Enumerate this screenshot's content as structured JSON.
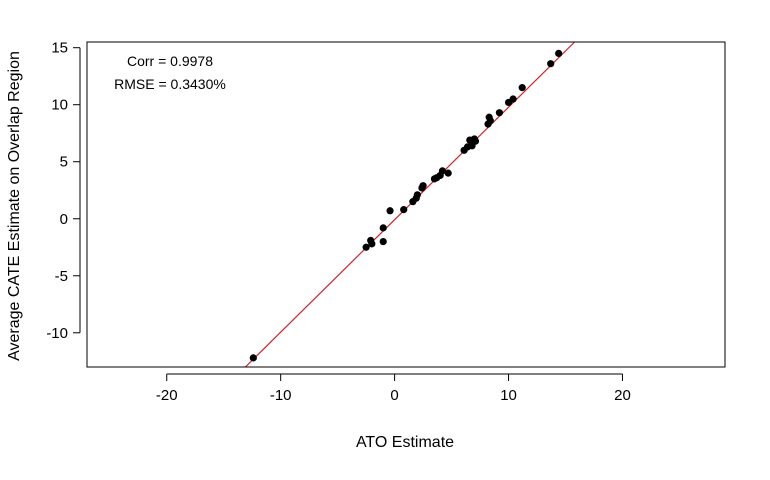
{
  "chart_data": {
    "type": "scatter",
    "title": "",
    "xlabel": "ATO Estimate",
    "ylabel": "Average CATE Estimate on Overlap Region",
    "xlim": [
      -27,
      29
    ],
    "ylim": [
      -13,
      15.5
    ],
    "x_ticks": [
      -20,
      -10,
      0,
      10,
      20
    ],
    "y_ticks": [
      -10,
      -5,
      0,
      5,
      10,
      15
    ],
    "grid": false,
    "annotations": [
      "Corr = 0.9978",
      "RMSE = 0.3430%"
    ],
    "reference_line": {
      "label": "",
      "points": [
        [
          -13.1,
          -13
        ],
        [
          15.8,
          15.5
        ]
      ],
      "color": "#d0262c"
    },
    "point_color": "#000000",
    "points": [
      [
        -12.4,
        -12.2
      ],
      [
        -2.5,
        -2.5
      ],
      [
        -2.1,
        -1.9
      ],
      [
        -2.0,
        -2.2
      ],
      [
        -1.0,
        -0.8
      ],
      [
        -1.0,
        -2.0
      ],
      [
        -0.4,
        0.7
      ],
      [
        0.8,
        0.8
      ],
      [
        1.6,
        1.5
      ],
      [
        1.9,
        1.8
      ],
      [
        2.0,
        2.1
      ],
      [
        2.4,
        2.7
      ],
      [
        2.5,
        2.9
      ],
      [
        3.5,
        3.5
      ],
      [
        3.7,
        3.6
      ],
      [
        4.0,
        3.8
      ],
      [
        4.2,
        4.2
      ],
      [
        4.7,
        4.0
      ],
      [
        6.1,
        6.0
      ],
      [
        6.4,
        6.3
      ],
      [
        6.6,
        6.9
      ],
      [
        6.8,
        6.4
      ],
      [
        7.0,
        7.0
      ],
      [
        7.1,
        6.8
      ],
      [
        8.2,
        8.3
      ],
      [
        8.3,
        8.9
      ],
      [
        8.4,
        8.6
      ],
      [
        9.2,
        9.3
      ],
      [
        10.0,
        10.2
      ],
      [
        10.4,
        10.5
      ],
      [
        11.2,
        11.5
      ],
      [
        13.7,
        13.6
      ],
      [
        14.4,
        14.5
      ]
    ]
  }
}
